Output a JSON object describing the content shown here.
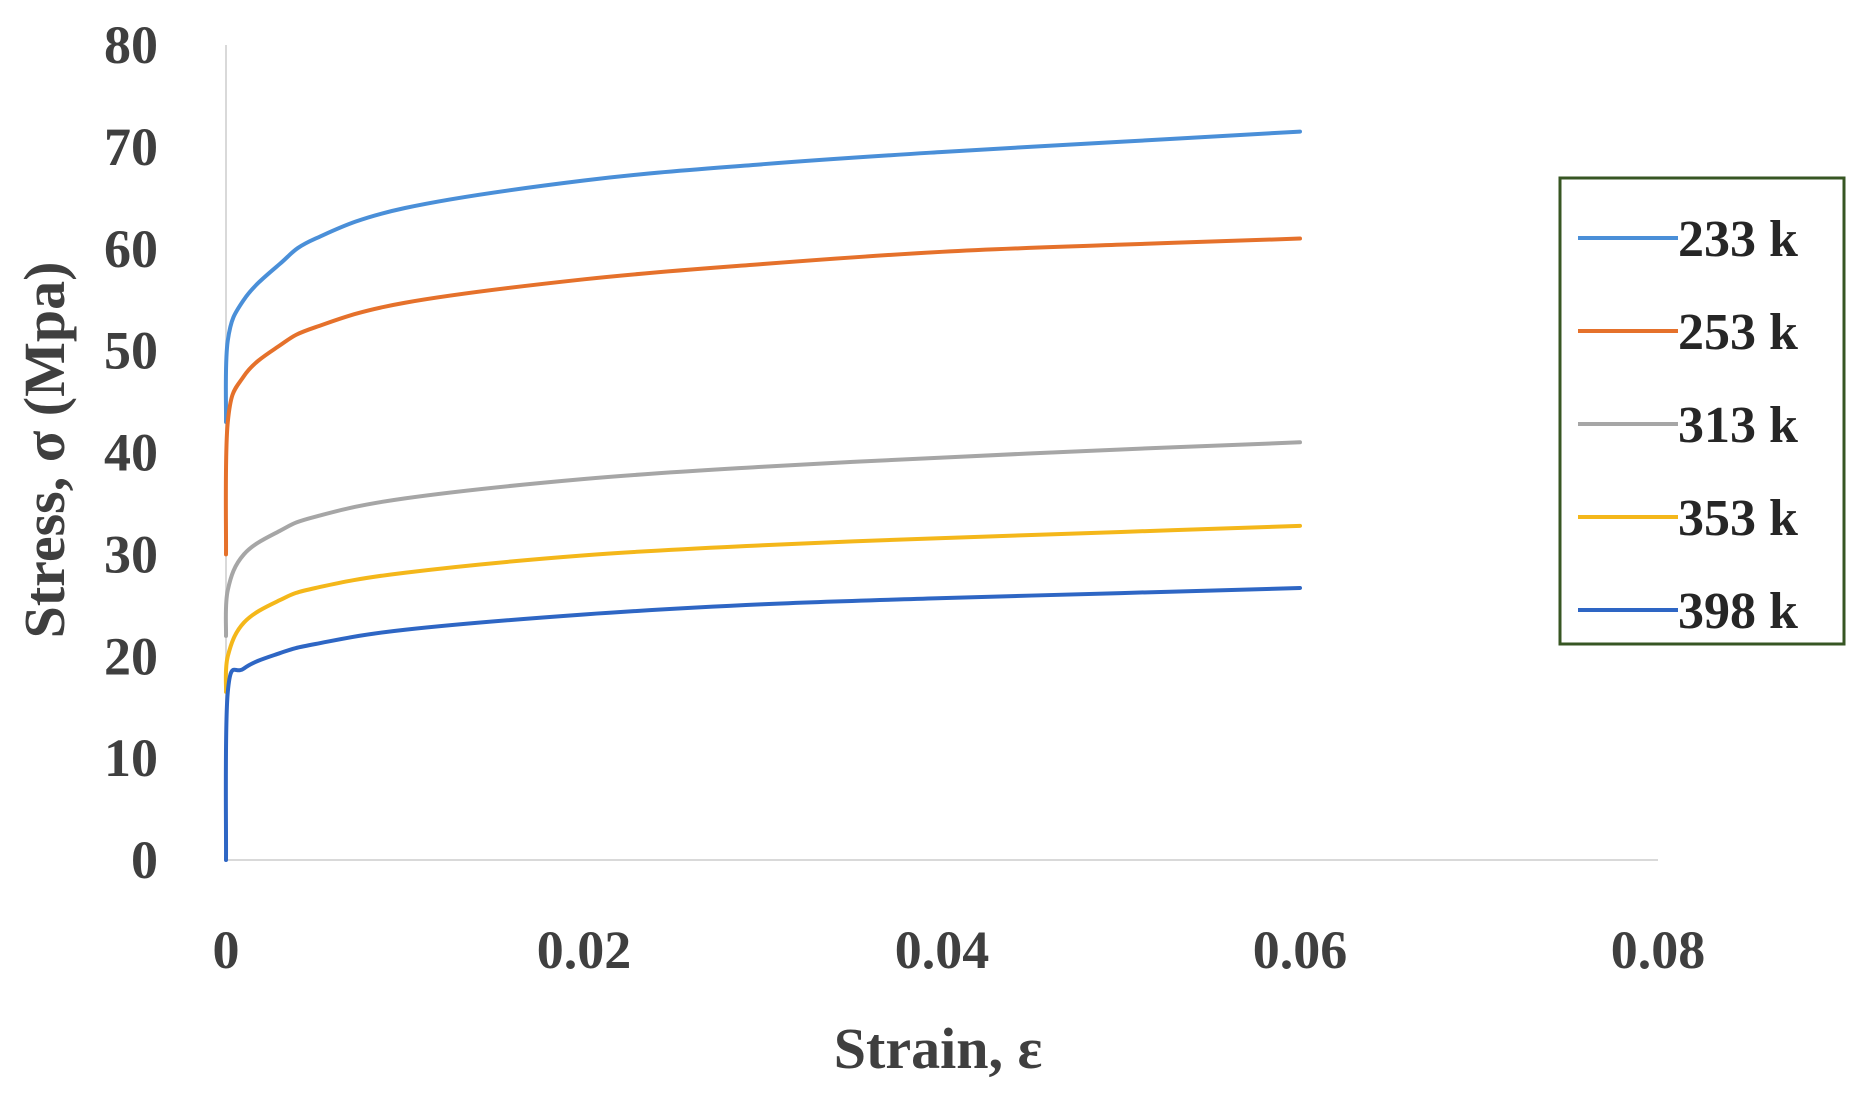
{
  "chart_data": {
    "type": "line",
    "title": "",
    "xlabel": "Strain, ε",
    "ylabel": "Stress, σ  (Mpa)",
    "xlim": [
      0,
      0.08
    ],
    "ylim": [
      0,
      80
    ],
    "x_ticks": [
      "0",
      "0.02",
      "0.04",
      "0.06",
      "0.08"
    ],
    "y_ticks": [
      "0",
      "10",
      "20",
      "30",
      "40",
      "50",
      "60",
      "70",
      "80"
    ],
    "grid": false,
    "legend_position": "right",
    "colors": {
      "233 k": "#4a8fd8",
      "253 k": "#e5712b",
      "313 k": "#a6a6a6",
      "353 k": "#f4b71a",
      "398 k": "#2e66c4",
      "axis": "#d9d9d9",
      "legend_border": "#375623"
    },
    "series": [
      {
        "name": "233 k",
        "x": [
          0,
          0.0001,
          0.001,
          0.003,
          0.005,
          0.01,
          0.02,
          0.03,
          0.04,
          0.05,
          0.06
        ],
        "values": [
          43,
          51,
          55,
          58.5,
          61,
          64,
          66.7,
          68.3,
          69.5,
          70.5,
          71.5
        ]
      },
      {
        "name": "253 k",
        "x": [
          0,
          0.0001,
          0.001,
          0.003,
          0.005,
          0.01,
          0.02,
          0.03,
          0.04,
          0.05,
          0.06
        ],
        "values": [
          30,
          43,
          47.5,
          50.5,
          52.3,
          54.7,
          57,
          58.5,
          59.7,
          60.4,
          61
        ]
      },
      {
        "name": "313 k",
        "x": [
          0,
          0.0001,
          0.001,
          0.003,
          0.005,
          0.01,
          0.02,
          0.03,
          0.04,
          0.05,
          0.06
        ],
        "values": [
          22,
          26.5,
          30,
          32.3,
          33.7,
          35.5,
          37.4,
          38.6,
          39.5,
          40.3,
          41
        ]
      },
      {
        "name": "353 k",
        "x": [
          0,
          0.0001,
          0.001,
          0.003,
          0.005,
          0.01,
          0.02,
          0.03,
          0.04,
          0.05,
          0.06
        ],
        "values": [
          16.5,
          20,
          23.3,
          25.5,
          26.7,
          28.2,
          29.9,
          30.9,
          31.6,
          32.2,
          32.8
        ]
      },
      {
        "name": "398 k",
        "x": [
          0,
          0.0001,
          0.001,
          0.003,
          0.005,
          0.01,
          0.02,
          0.03,
          0.04,
          0.05,
          0.06
        ],
        "values": [
          0,
          16.5,
          18.8,
          20.3,
          21.2,
          22.6,
          24.1,
          25.1,
          25.7,
          26.2,
          26.7
        ]
      }
    ]
  }
}
